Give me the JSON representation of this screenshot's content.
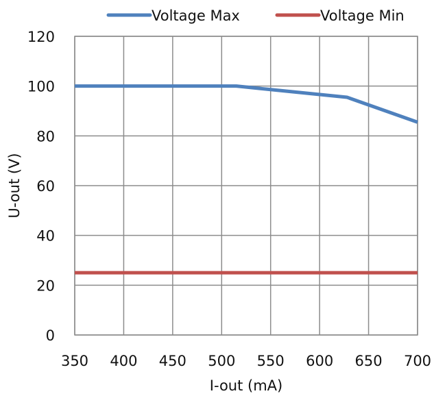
{
  "chart_data": {
    "type": "line",
    "title": "",
    "xlabel": "I-out (mA)",
    "ylabel": "U-out (V)",
    "xlim": [
      350,
      700
    ],
    "ylim": [
      0,
      120
    ],
    "xticks": [
      350,
      400,
      450,
      500,
      550,
      600,
      650,
      700
    ],
    "yticks": [
      0,
      20,
      40,
      60,
      80,
      100,
      120
    ],
    "grid": true,
    "legend_position": "top",
    "series": [
      {
        "name": "Voltage Max",
        "color": "#4f81bd",
        "x": [
          350,
          515,
          628,
          700
        ],
        "values": [
          100,
          100,
          95.5,
          85.5
        ]
      },
      {
        "name": "Voltage Min",
        "color": "#c0504d",
        "x": [
          350,
          700
        ],
        "values": [
          25,
          25
        ]
      }
    ]
  }
}
